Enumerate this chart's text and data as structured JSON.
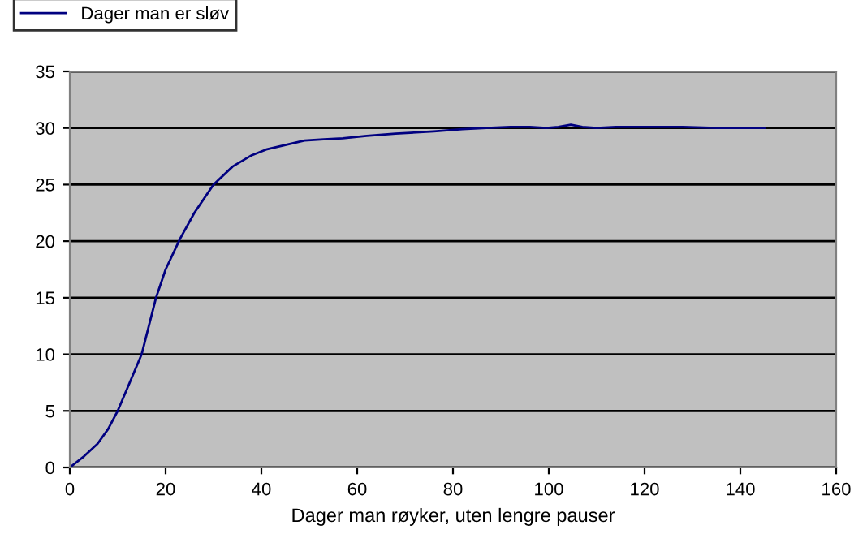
{
  "chart_data": {
    "type": "line",
    "xlabel": "Dager man røyker, uten lengre pauser",
    "x": [
      0,
      3,
      5.8,
      8,
      10,
      12.5,
      15,
      16.5,
      18,
      20,
      23,
      26,
      30,
      34,
      38,
      41,
      45,
      49,
      53,
      57,
      62,
      68,
      76,
      82,
      87,
      92,
      96,
      99.5,
      102,
      104.6,
      107,
      110,
      114,
      120,
      128,
      135,
      145
    ],
    "series": [
      {
        "name": "Dager man er sløv",
        "color": "#000080",
        "values": [
          0,
          1,
          2.1,
          3.4,
          5,
          7.5,
          10,
          12.5,
          15,
          17.5,
          20.2,
          22.5,
          25,
          26.6,
          27.6,
          28.1,
          28.5,
          28.9,
          29.0,
          29.1,
          29.3,
          29.5,
          29.7,
          29.9,
          30.0,
          30.1,
          30.1,
          30.0,
          30.1,
          30.3,
          30.1,
          30.0,
          30.1,
          30.1,
          30.1,
          30.0,
          30.0
        ]
      }
    ],
    "xlim": [
      0,
      160
    ],
    "xticks": [
      0,
      20,
      40,
      60,
      80,
      100,
      120,
      140,
      160
    ],
    "ylim": [
      0,
      35
    ],
    "yticks": [
      0,
      5,
      10,
      15,
      20,
      25,
      30,
      35
    ],
    "grid": "y",
    "legend": "top left"
  }
}
